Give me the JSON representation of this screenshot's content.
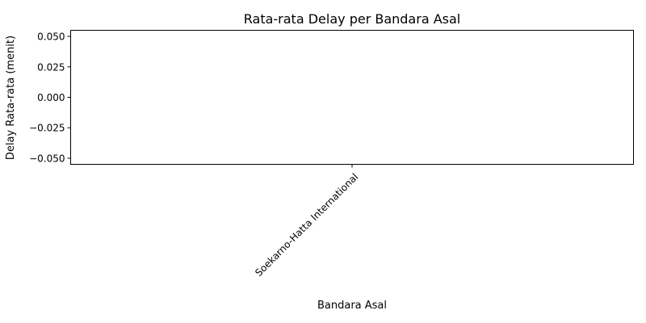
{
  "chart_data": {
    "type": "bar",
    "title": "Rata-rata Delay per Bandara Asal",
    "xlabel": "Bandara Asal",
    "ylabel": "Delay Rata-rata (menit)",
    "categories": [
      "Soekarno-Hatta International"
    ],
    "values": [
      0
    ],
    "ylim": [
      -0.055,
      0.055
    ],
    "yticks": [
      0.05,
      0.025,
      0.0,
      -0.025,
      -0.05
    ],
    "ytick_labels": [
      "0.050",
      "0.025",
      "0.000",
      "−0.025",
      "−0.050"
    ],
    "grid": false,
    "legend": "none"
  }
}
